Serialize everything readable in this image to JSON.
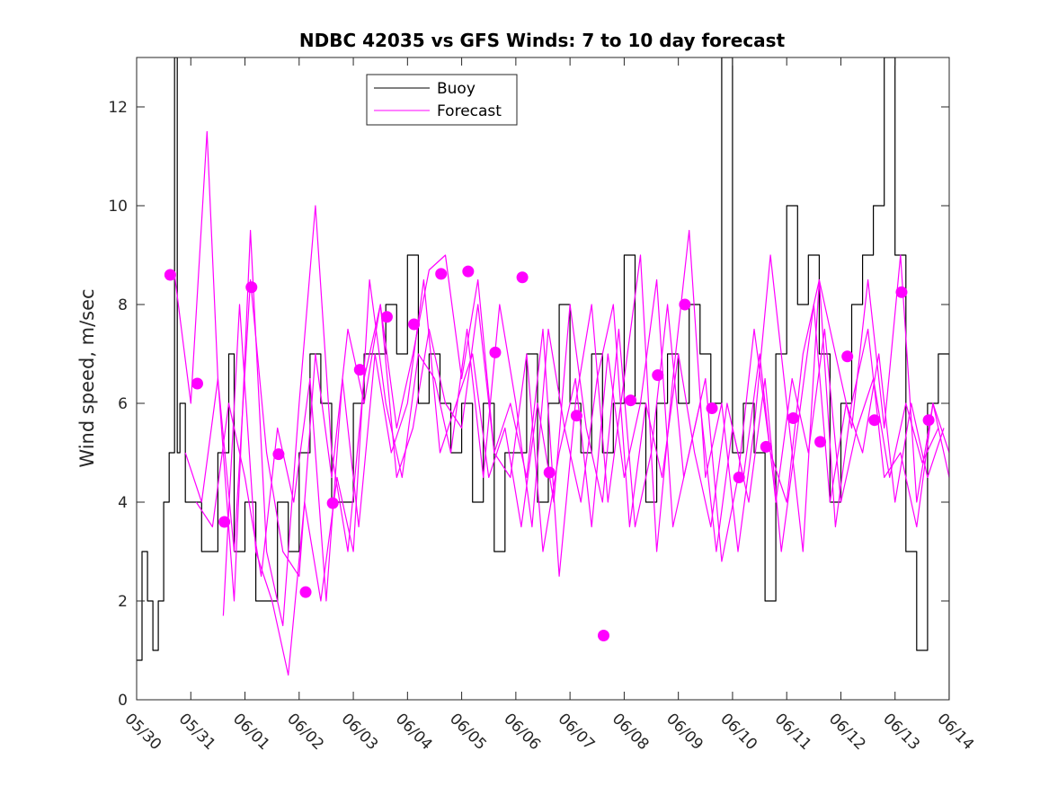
{
  "chart_data": {
    "type": "line",
    "title": "NDBC 42035 vs GFS Winds: 7 to 10 day forecast",
    "xlabel": "",
    "ylabel": "Wind speed, m/sec",
    "xlim": [
      0,
      15
    ],
    "ylim": [
      0,
      13
    ],
    "x_ticks": [
      "05/30",
      "05/31",
      "06/01",
      "06/02",
      "06/03",
      "06/04",
      "06/05",
      "06/06",
      "06/07",
      "06/08",
      "06/09",
      "06/10",
      "06/11",
      "06/12",
      "06/13",
      "06/14"
    ],
    "y_ticks": [
      0,
      2,
      4,
      6,
      8,
      10,
      12
    ],
    "legend": {
      "position": "top-center",
      "entries": [
        "Buoy",
        "Forecast"
      ]
    },
    "colors": {
      "buoy": "#000000",
      "forecast": "#ff00ff"
    },
    "series": [
      {
        "name": "Buoy",
        "x": [
          0.0,
          0.1,
          0.2,
          0.3,
          0.4,
          0.5,
          0.6,
          0.7,
          0.75,
          0.8,
          0.9,
          1.0,
          1.2,
          1.5,
          1.7,
          1.8,
          2.0,
          2.2,
          2.4,
          2.6,
          2.8,
          3.0,
          3.2,
          3.4,
          3.6,
          3.8,
          4.0,
          4.2,
          4.4,
          4.6,
          4.8,
          5.0,
          5.2,
          5.4,
          5.6,
          5.8,
          6.0,
          6.2,
          6.4,
          6.6,
          6.8,
          7.0,
          7.2,
          7.4,
          7.6,
          7.8,
          8.0,
          8.2,
          8.4,
          8.6,
          8.8,
          9.0,
          9.2,
          9.4,
          9.6,
          9.8,
          10.0,
          10.2,
          10.4,
          10.6,
          10.8,
          11.0,
          11.2,
          11.4,
          11.6,
          11.8,
          12.0,
          12.2,
          12.4,
          12.6,
          12.8,
          13.0,
          13.2,
          13.4,
          13.6,
          13.8,
          14.0,
          14.2,
          14.4,
          14.6,
          14.8,
          15.0
        ],
        "y": [
          0.8,
          3.0,
          2.0,
          1.0,
          2.0,
          4.0,
          5.0,
          13.0,
          5.0,
          6.0,
          4.0,
          4.0,
          3.0,
          5.0,
          7.0,
          3.0,
          4.0,
          2.0,
          2.0,
          4.0,
          3.0,
          5.0,
          7.0,
          6.0,
          4.0,
          4.0,
          6.0,
          7.0,
          7.0,
          8.0,
          7.0,
          9.0,
          6.0,
          7.0,
          6.0,
          5.0,
          6.0,
          4.0,
          6.0,
          3.0,
          5.0,
          5.0,
          7.0,
          4.0,
          6.0,
          8.0,
          6.0,
          5.0,
          7.0,
          5.0,
          6.0,
          9.0,
          6.0,
          4.0,
          6.0,
          7.0,
          6.0,
          8.0,
          7.0,
          6.0,
          13.0,
          5.0,
          6.0,
          5.0,
          2.0,
          7.0,
          10.0,
          8.0,
          9.0,
          7.0,
          4.0,
          6.0,
          8.0,
          9.0,
          10.0,
          13.0,
          9.0,
          3.0,
          1.0,
          6.0,
          7.0,
          0.0
        ]
      },
      {
        "name": "Forecast",
        "x": [
          0.7,
          1.0,
          1.3,
          1.5,
          1.8,
          2.1,
          2.4,
          2.7,
          3.0,
          3.3,
          3.6,
          3.9,
          4.2,
          4.5,
          4.8,
          5.1,
          5.4,
          5.7,
          6.0,
          6.3,
          6.6,
          6.9,
          7.2,
          7.5,
          7.8,
          8.1,
          8.4,
          8.7,
          9.0,
          9.3,
          9.6,
          9.9,
          10.2,
          10.5,
          10.8,
          11.1,
          11.4,
          11.7,
          12.0,
          12.3,
          12.6,
          12.9,
          13.2,
          13.5,
          13.8,
          14.1,
          14.4,
          14.7,
          15.0
        ],
        "y": [
          8.6,
          6.0,
          11.5,
          6.5,
          2.0,
          9.5,
          3.0,
          1.5,
          6.0,
          10.0,
          5.0,
          3.0,
          6.5,
          8.0,
          5.5,
          7.0,
          8.7,
          9.0,
          6.5,
          8.5,
          5.0,
          6.0,
          4.5,
          7.5,
          2.5,
          6.0,
          8.0,
          4.0,
          6.5,
          9.0,
          3.0,
          6.5,
          9.5,
          4.5,
          6.0,
          3.0,
          5.5,
          9.0,
          6.0,
          3.0,
          8.5,
          7.0,
          5.5,
          8.5,
          5.5,
          9.0,
          4.0,
          6.0,
          4.5
        ]
      },
      {
        "name": "Forecast",
        "x": [
          0.9,
          1.2,
          1.5,
          1.8,
          2.1,
          2.4,
          2.7,
          3.0,
          3.3,
          3.6,
          3.9,
          4.2,
          4.5,
          4.8,
          5.1,
          5.4,
          5.7,
          6.0,
          6.3,
          6.6,
          6.9,
          7.2,
          7.5,
          7.8,
          8.1,
          8.4,
          8.7,
          9.0,
          9.3,
          9.6,
          9.9,
          10.2,
          10.5,
          10.8,
          11.1,
          11.4,
          11.7,
          12.0,
          12.3,
          12.6,
          12.9,
          13.2,
          13.5,
          13.8,
          14.1,
          14.4,
          14.7,
          15.0
        ],
        "y": [
          5.0,
          4.0,
          6.5,
          3.0,
          8.5,
          5.0,
          3.0,
          2.5,
          7.0,
          4.5,
          7.5,
          6.0,
          8.0,
          4.5,
          5.5,
          7.5,
          6.0,
          5.5,
          8.0,
          5.0,
          4.5,
          7.0,
          3.0,
          5.0,
          6.5,
          3.5,
          7.0,
          4.5,
          6.0,
          8.5,
          3.5,
          5.0,
          6.5,
          2.8,
          4.5,
          7.5,
          5.0,
          4.0,
          7.0,
          8.5,
          3.5,
          6.0,
          7.5,
          4.5,
          5.0,
          3.5,
          6.0,
          5.0
        ]
      },
      {
        "name": "Forecast",
        "x": [
          1.1,
          1.4,
          1.7,
          2.0,
          2.3,
          2.6,
          2.9,
          3.2,
          3.5,
          3.8,
          4.1,
          4.4,
          4.7,
          5.0,
          5.3,
          5.6,
          5.9,
          6.2,
          6.5,
          6.8,
          7.1,
          7.4,
          7.7,
          8.0,
          8.3,
          8.6,
          8.9,
          9.2,
          9.5,
          9.8,
          10.1,
          10.4,
          10.7,
          11.0,
          11.3,
          11.6,
          11.9,
          12.2,
          12.5,
          12.8,
          13.1,
          13.4,
          13.7,
          14.0,
          14.3,
          14.6,
          14.9
        ],
        "y": [
          4.0,
          3.5,
          6.0,
          4.5,
          2.5,
          5.5,
          4.0,
          6.5,
          2.0,
          6.5,
          3.5,
          7.0,
          5.0,
          6.0,
          8.5,
          5.0,
          6.0,
          7.0,
          4.5,
          5.5,
          3.5,
          6.0,
          4.0,
          8.0,
          5.5,
          4.0,
          7.5,
          3.5,
          5.0,
          8.0,
          4.5,
          6.0,
          3.0,
          5.5,
          4.0,
          6.5,
          3.0,
          5.5,
          8.0,
          4.0,
          6.0,
          5.0,
          7.0,
          4.0,
          6.0,
          4.5,
          5.5
        ]
      },
      {
        "name": "Forecast",
        "x": [
          1.6,
          1.9,
          2.2,
          2.5,
          2.8,
          3.1,
          3.4,
          3.7,
          4.0,
          4.3,
          4.6,
          4.9,
          5.2,
          5.5,
          5.8,
          6.1,
          6.4,
          6.7,
          7.0,
          7.3,
          7.6,
          7.9,
          8.2,
          8.5,
          8.8,
          9.1,
          9.4,
          9.7,
          10.0,
          10.3,
          10.6,
          10.9,
          11.2,
          11.5,
          11.8,
          12.1,
          12.4,
          12.7,
          13.0,
          13.3,
          13.6,
          13.9,
          14.2,
          14.5,
          14.8
        ],
        "y": [
          1.7,
          8.0,
          3.0,
          2.0,
          0.5,
          4.0,
          2.0,
          4.5,
          3.0,
          8.5,
          6.0,
          4.5,
          7.0,
          6.5,
          5.0,
          7.5,
          4.5,
          8.0,
          6.0,
          3.5,
          7.5,
          5.5,
          4.0,
          6.5,
          8.0,
          3.5,
          6.0,
          4.5,
          7.0,
          5.0,
          3.5,
          6.0,
          4.5,
          7.0,
          4.0,
          6.5,
          5.0,
          7.5,
          4.0,
          5.5,
          6.5,
          4.5,
          6.0,
          4.8,
          5.5
        ]
      }
    ],
    "markers": {
      "x": [
        0.62,
        1.12,
        1.62,
        2.12,
        2.62,
        3.12,
        3.62,
        4.12,
        4.62,
        5.12,
        5.62,
        6.12,
        6.62,
        7.12,
        7.62,
        8.12,
        8.62,
        9.12,
        9.62,
        10.12,
        10.62,
        11.12,
        11.62,
        12.12,
        12.62,
        13.12,
        13.62,
        14.12,
        14.62
      ],
      "y": [
        8.6,
        6.4,
        3.6,
        8.35,
        4.97,
        2.18,
        3.98,
        6.68,
        7.75,
        7.6,
        8.62,
        8.67,
        7.03,
        8.55,
        4.6,
        5.75,
        1.3,
        6.06,
        6.57,
        8.0,
        5.9,
        4.5,
        5.12,
        5.7,
        5.22,
        6.95,
        5.66,
        8.25,
        5.66
      ]
    }
  }
}
